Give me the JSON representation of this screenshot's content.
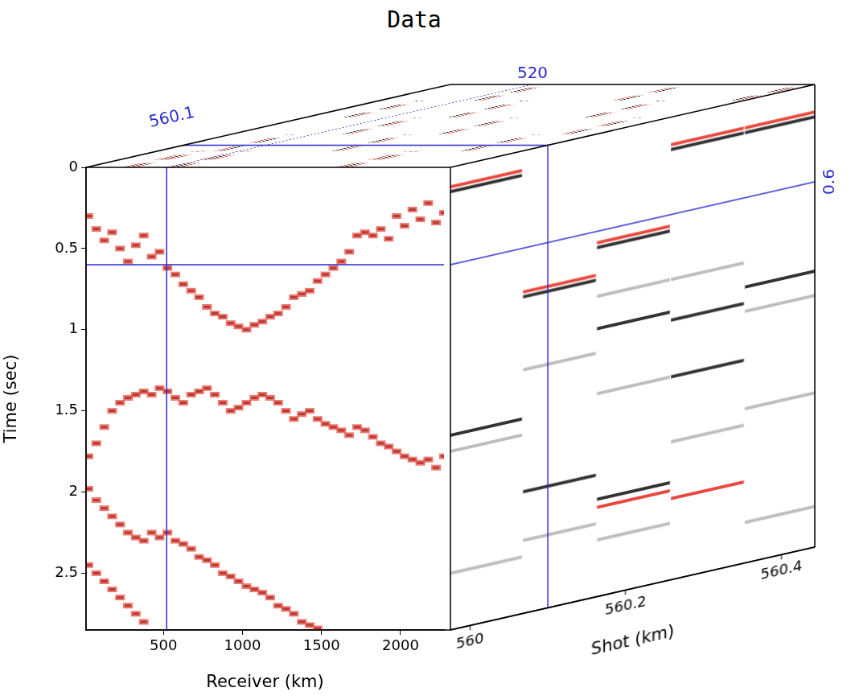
{
  "chart_data": {
    "type": "scatter",
    "title": "Data",
    "x_label": "Receiver (km)",
    "y_label": "Time (sec)",
    "z_label": "Shot (km)",
    "xlim": [
      10,
      2275
    ],
    "xticks": [
      500,
      1000,
      1500,
      2000
    ],
    "ylim": [
      0,
      2.85
    ],
    "yticks": [
      0,
      0.5,
      1,
      1.5,
      2,
      2.5
    ],
    "zlim": [
      559.975,
      560.443
    ],
    "zticks": [
      560,
      560.2,
      560.4
    ],
    "slice": {
      "receiver": 520,
      "shot": 560.1,
      "time": 0.6
    },
    "grid": false,
    "front": {
      "series": [
        {
          "color": "#111111",
          "x": [
            25,
            75,
            125,
            175,
            225,
            275,
            325,
            375,
            425,
            475,
            525,
            575,
            625,
            675,
            725,
            775,
            825,
            875,
            925,
            975,
            1025,
            1075,
            1125,
            1175,
            1225,
            1275,
            1325,
            1375,
            1425,
            1475,
            1525,
            1575,
            1625,
            1675,
            1725,
            1775,
            1825,
            1875,
            1925,
            1975,
            2025,
            2075,
            2125,
            2175,
            2225,
            2275
          ],
          "values": [
            0.3,
            0.38,
            0.45,
            0.4,
            0.5,
            0.58,
            0.48,
            0.42,
            0.55,
            0.52,
            0.62,
            0.66,
            0.72,
            0.76,
            0.8,
            0.86,
            0.9,
            0.92,
            0.96,
            0.98,
            1.0,
            0.97,
            0.95,
            0.92,
            0.9,
            0.86,
            0.8,
            0.78,
            0.76,
            0.7,
            0.66,
            0.62,
            0.58,
            0.52,
            0.42,
            0.4,
            0.42,
            0.38,
            0.44,
            0.3,
            0.36,
            0.26,
            0.32,
            0.22,
            0.34,
            0.28
          ]
        },
        {
          "color": "#111111",
          "x": [
            25,
            75,
            125,
            175,
            225,
            275,
            325,
            375,
            425,
            475,
            525,
            575,
            625,
            675,
            725,
            775,
            825,
            875,
            925,
            975,
            1025,
            1075,
            1125,
            1175,
            1225,
            1275,
            1325,
            1375,
            1425,
            1475,
            1525,
            1575,
            1625,
            1675,
            1725,
            1775,
            1825,
            1875,
            1925,
            1975,
            2025,
            2075,
            2125,
            2175,
            2225,
            2275
          ],
          "values": [
            1.78,
            1.7,
            1.6,
            1.5,
            1.45,
            1.42,
            1.4,
            1.38,
            1.4,
            1.36,
            1.38,
            1.42,
            1.45,
            1.4,
            1.38,
            1.36,
            1.4,
            1.45,
            1.5,
            1.48,
            1.45,
            1.42,
            1.4,
            1.42,
            1.45,
            1.5,
            1.55,
            1.52,
            1.5,
            1.55,
            1.58,
            1.6,
            1.62,
            1.65,
            1.6,
            1.62,
            1.66,
            1.7,
            1.72,
            1.75,
            1.78,
            1.8,
            1.82,
            1.8,
            1.85,
            1.78
          ]
        },
        {
          "color": "#111111",
          "x": [
            25,
            75,
            125,
            175,
            225,
            275,
            325,
            375,
            425,
            475,
            525,
            575,
            625,
            675,
            725,
            775,
            825,
            875,
            925,
            975,
            1025,
            1075,
            1125,
            1175,
            1225,
            1275,
            1325,
            1375,
            1425,
            1475
          ],
          "values": [
            1.98,
            2.05,
            2.1,
            2.15,
            2.2,
            2.25,
            2.28,
            2.3,
            2.25,
            2.28,
            2.25,
            2.3,
            2.32,
            2.35,
            2.4,
            2.42,
            2.45,
            2.5,
            2.52,
            2.55,
            2.58,
            2.6,
            2.62,
            2.65,
            2.7,
            2.72,
            2.75,
            2.8,
            2.82,
            2.84
          ]
        },
        {
          "color": "#111111",
          "x": [
            25,
            75,
            125,
            175,
            225,
            275,
            325,
            375
          ],
          "values": [
            2.45,
            2.5,
            2.55,
            2.6,
            2.65,
            2.7,
            2.75,
            2.8
          ]
        }
      ]
    },
    "side": {
      "series": [
        {
          "color": "#bdbdbd",
          "x": [
            560.02,
            560.02,
            560.115,
            560.115,
            560.21,
            560.21,
            560.21,
            560.305,
            560.305,
            560.4,
            560.4,
            560.4
          ],
          "values": [
            1.75,
            2.5,
            1.35,
            2.4,
            1.0,
            1.6,
            2.5,
            1.0,
            2.0,
            1.3,
            1.9,
            2.6
          ]
        },
        {
          "color": "#e8493f",
          "x": [
            560.02,
            560.115,
            560.21,
            560.21,
            560.305,
            560.305,
            560.4
          ],
          "values": [
            0.12,
            0.87,
            0.67,
            2.3,
            0.17,
            2.35,
            0.17
          ]
        },
        {
          "color": "#333333",
          "x": [
            560.02,
            560.02,
            560.115,
            560.115,
            560.21,
            560.21,
            560.21,
            560.305,
            560.305,
            560.305,
            560.4,
            560.4
          ],
          "values": [
            0.15,
            1.65,
            0.9,
            2.1,
            0.7,
            1.2,
            2.25,
            0.2,
            1.25,
            1.6,
            0.2,
            1.15
          ]
        }
      ]
    },
    "top": {
      "series": [
        {
          "color": "#e8493f",
          "x": [
            240,
            310,
            515,
            585,
            1565,
            1635,
            365,
            1135,
            1935,
            735,
            1335,
            2065,
            285,
            935,
            1785,
            635,
            1465,
            2235
          ],
          "values": [
            560.02,
            560.02,
            560.02,
            560.02,
            560.02,
            560.02,
            560.115,
            560.115,
            560.115,
            560.21,
            560.21,
            560.21,
            560.305,
            560.305,
            560.305,
            560.4,
            560.4,
            560.4
          ]
        },
        {
          "color": "#222222",
          "x": [
            275,
            550,
            1600,
            400,
            1100,
            1900,
            700,
            1300,
            2100,
            250,
            900,
            1750,
            600,
            1500,
            2200
          ],
          "values": [
            560.02,
            560.02,
            560.02,
            560.115,
            560.115,
            560.115,
            560.21,
            560.21,
            560.21,
            560.305,
            560.305,
            560.305,
            560.4,
            560.4,
            560.4
          ]
        }
      ]
    }
  }
}
